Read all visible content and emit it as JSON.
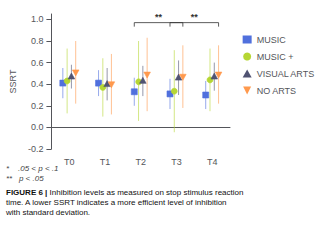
{
  "chart_data": {
    "type": "scatter",
    "ylabel": "SSRT",
    "categories": [
      "T0",
      "T1",
      "T2",
      "T3",
      "T4"
    ],
    "ylim": [
      -0.2,
      1.05
    ],
    "yticks": [
      -0.2,
      {
        "value": 0,
        "label": "0.0"
      },
      0.2,
      0.4,
      0.6,
      0.8,
      {
        "value": 1,
        "label": "1.0"
      }
    ],
    "grid": false,
    "legend": "right",
    "series": [
      {
        "name": "MUSIC",
        "marker": "square",
        "values": [
          0.41,
          0.41,
          0.33,
          0.31,
          0.3
        ],
        "errors": [
          0.14,
          0.12,
          0.13,
          0.14,
          0.13
        ]
      },
      {
        "name": "MUSIC +",
        "marker": "circle",
        "values": [
          0.43,
          0.37,
          0.43,
          0.335,
          0.44
        ],
        "errors": [
          0.3,
          0.27,
          0.37,
          0.38,
          0.29
        ]
      },
      {
        "name": "VISUAL ARTS",
        "marker": "triangle",
        "values": [
          0.47,
          0.4,
          0.43,
          0.46,
          0.47
        ],
        "errors": [
          0.11,
          0.15,
          0.14,
          0.16,
          0.13
        ]
      },
      {
        "name": "NO ARTS",
        "marker": "triangle_down",
        "values": [
          0.51,
          0.4,
          0.49,
          0.47,
          0.49
        ],
        "errors": [
          0.29,
          0.28,
          0.34,
          0.29,
          0.27
        ]
      }
    ],
    "annotations": [
      {
        "text": "**",
        "from": "T2",
        "to": "T3",
        "y": 0.97
      },
      {
        "text": "**",
        "from": "T3",
        "to": "T4",
        "y": 0.97
      }
    ],
    "notes": [
      "*    .05 < p < .1",
      "**   p < .05"
    ],
    "caption": {
      "bold": "FIGURE 6 | ",
      "text": "Inhibition levels as measured on stop stimulus reaction time. A lower SSRT indicates a more efficient level of inhibition with standard deviation."
    }
  }
}
